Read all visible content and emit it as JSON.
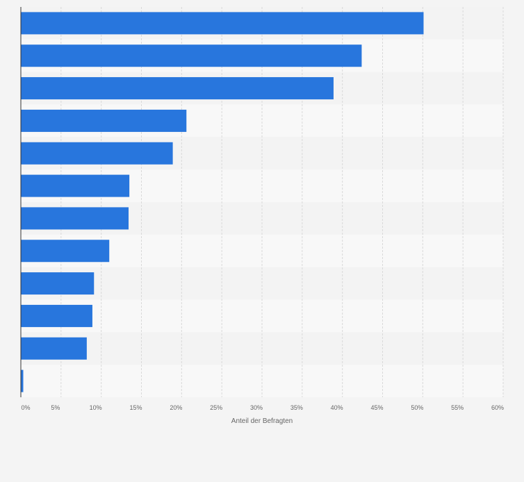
{
  "chart_data": {
    "type": "bar",
    "orientation": "horizontal",
    "categories": [
      "",
      "",
      "",
      "",
      "",
      "",
      "",
      "",
      "",
      "",
      "",
      ""
    ],
    "values": [
      50.1,
      42.4,
      38.9,
      20.6,
      18.9,
      13.5,
      13.4,
      11.0,
      9.1,
      8.9,
      8.2,
      0.3
    ],
    "title": "",
    "xlabel": "Anteil der Befragten",
    "ylabel": "",
    "xlim": [
      0,
      60
    ],
    "ticks": [
      0,
      5,
      10,
      15,
      20,
      25,
      30,
      35,
      40,
      45,
      50,
      55,
      60
    ],
    "tick_labels": [
      "0%",
      "5%",
      "10%",
      "15%",
      "20%",
      "25%",
      "30%",
      "35%",
      "40%",
      "45%",
      "50%",
      "55%",
      "60%"
    ],
    "grid": true,
    "colors": {
      "bar": "#2876dd",
      "band_dark": "#f3f3f3",
      "band_light": "#f8f8f8",
      "grid": "#d9d9d9",
      "axis": "#333333",
      "tick_text": "#666666",
      "page_bg": "#f4f4f4"
    }
  }
}
